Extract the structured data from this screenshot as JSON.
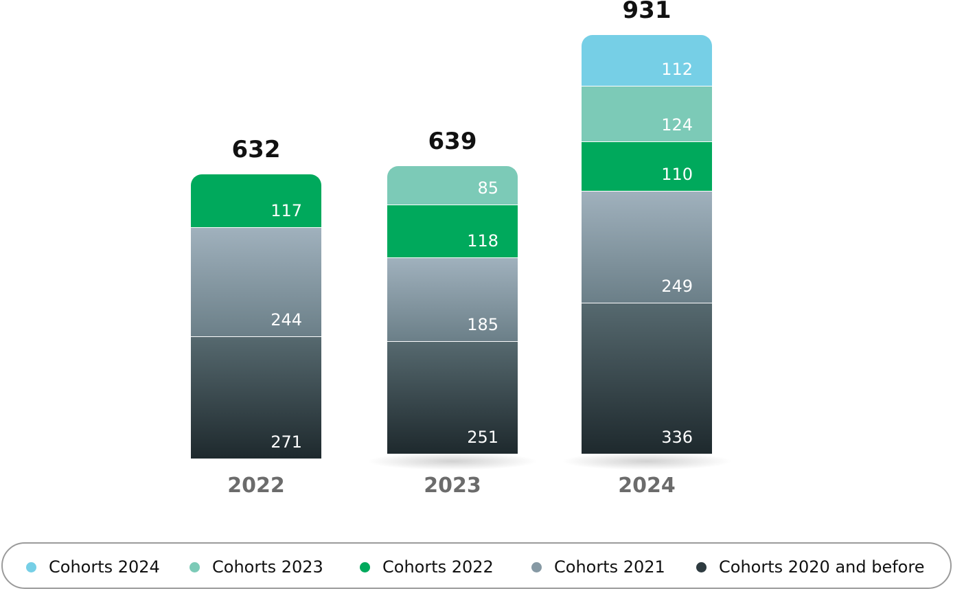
{
  "chart_data": {
    "type": "bar",
    "stacked": true,
    "categories": [
      "2022",
      "2023",
      "2024"
    ],
    "totals": [
      "632",
      "639",
      "931"
    ],
    "series": [
      {
        "name": "Cohorts 2020 and before",
        "values": [
          271,
          251,
          336
        ],
        "color": "#2e3b40"
      },
      {
        "name": "Cohorts 2021",
        "values": [
          244,
          185,
          249
        ],
        "color": "#8699a4"
      },
      {
        "name": "Cohorts 2022",
        "values": [
          117,
          118,
          110
        ],
        "color": "#00a95c"
      },
      {
        "name": "Cohorts 2023",
        "values": [
          null,
          85,
          124
        ],
        "color": "#7ccab7"
      },
      {
        "name": "Cohorts 2024",
        "values": [
          null,
          null,
          112
        ],
        "color": "#76cfe6"
      }
    ],
    "legend": [
      "Cohorts 2024",
      "Cohorts 2023",
      "Cohorts 2022",
      "Cohorts 2021",
      "Cohorts 2020 and before"
    ],
    "legend_position": "bottom",
    "grid": false,
    "title": "",
    "xlabel": "",
    "ylabel": ""
  }
}
